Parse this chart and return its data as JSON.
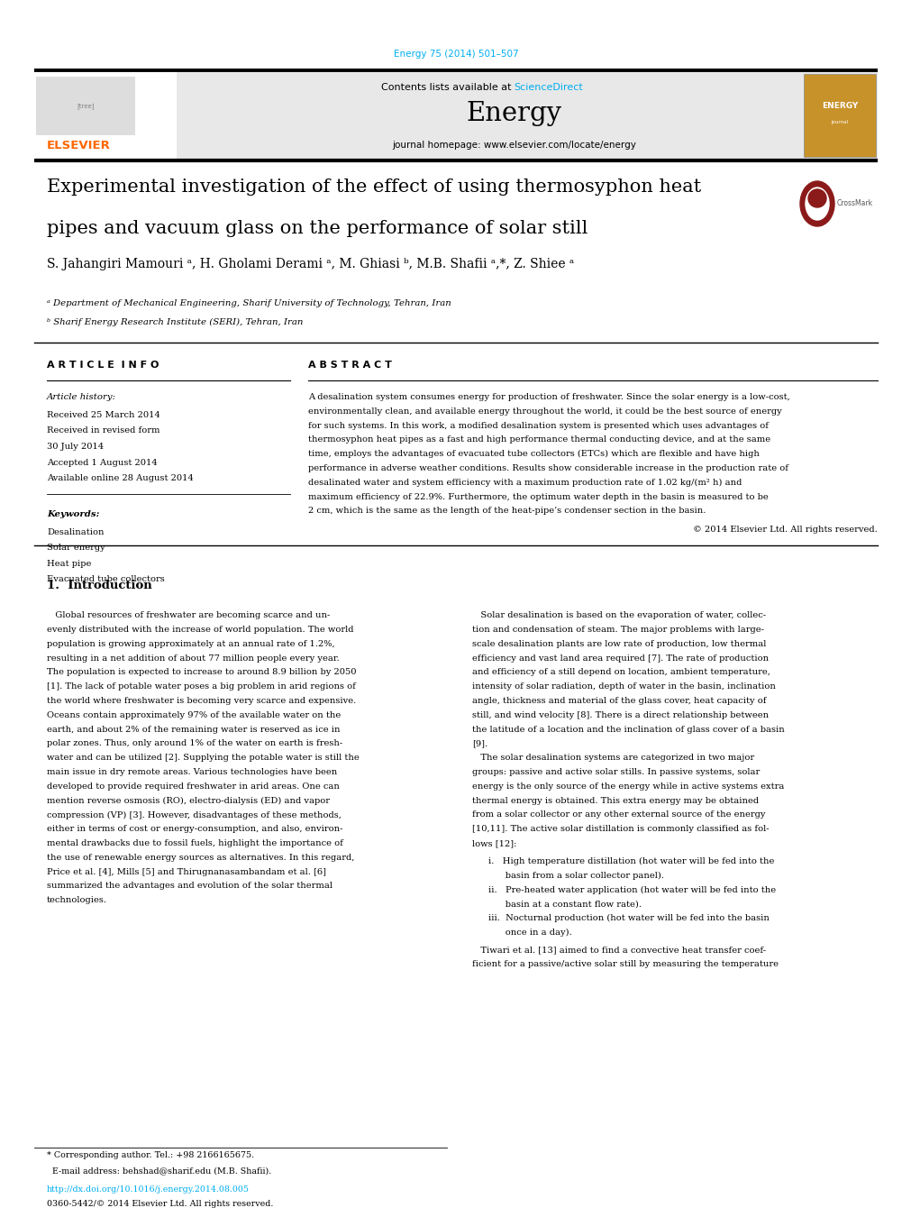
{
  "page_width": 9.92,
  "page_height": 13.23,
  "bg_color": "#ffffff",
  "journal_ref": "Energy 75 (2014) 501–507",
  "journal_ref_color": "#00aeef",
  "header_bg": "#e8e8e8",
  "contents_text": "Contents lists available at ",
  "sciencedirect_text": "ScienceDirect",
  "sciencedirect_color": "#00aeef",
  "journal_name": "Energy",
  "homepage_text": "journal homepage: www.elsevier.com/locate/energy",
  "elsevier_color": "#ff6600",
  "title_line1": "Experimental investigation of the effect of using thermosyphon heat",
  "title_line2": "pipes and vacuum glass on the performance of solar still",
  "authors": "S. Jahangiri Mamouri ᵃ, H. Gholami Derami ᵃ, M. Ghiasi ᵇ, M.B. Shafii ᵃ,*, Z. Shiee ᵃ",
  "affil_a": "ᵃ Department of Mechanical Engineering, Sharif University of Technology, Tehran, Iran",
  "affil_b": "ᵇ Sharif Energy Research Institute (SERI), Tehran, Iran",
  "section_article_info": "A R T I C L E  I N F O",
  "section_abstract": "A B S T R A C T",
  "article_history_label": "Article history:",
  "received": "Received 25 March 2014",
  "received_revised1": "Received in revised form",
  "received_revised2": "30 July 2014",
  "accepted": "Accepted 1 August 2014",
  "available": "Available online 28 August 2014",
  "keywords_label": "Keywords:",
  "keywords": [
    "Desalination",
    "Solar energy",
    "Heat pipe",
    "Evacuated tube collectors"
  ],
  "abstract_text": "A desalination system consumes energy for production of freshwater. Since the solar energy is a low-cost, environmentally clean, and available energy throughout the world, it could be the best source of energy for such systems. In this work, a modified desalination system is presented which uses advantages of thermosyphon heat pipes as a fast and high performance thermal conducting device, and at the same time, employs the advantages of evacuated tube collectors (ETCs) which are flexible and have high performance in adverse weather conditions. Results show considerable increase in the production rate of desalinated water and system efficiency with a maximum production rate of 1.02 kg/(m² h) and maximum efficiency of 22.9%. Furthermore, the optimum water depth in the basin is measured to be 2 cm, which is the same as the length of the heat-pipe’s condenser section in the basin.",
  "copyright_text": "© 2014 Elsevier Ltd. All rights reserved.",
  "intro_heading": "1.  Introduction",
  "intro_col1_lines": [
    "   Global resources of freshwater are becoming scarce and un-",
    "evenly distributed with the increase of world population. The world",
    "population is growing approximately at an annual rate of 1.2%,",
    "resulting in a net addition of about 77 million people every year.",
    "The population is expected to increase to around 8.9 billion by 2050",
    "[1]. The lack of potable water poses a big problem in arid regions of",
    "the world where freshwater is becoming very scarce and expensive.",
    "Oceans contain approximately 97% of the available water on the",
    "earth, and about 2% of the remaining water is reserved as ice in",
    "polar zones. Thus, only around 1% of the water on earth is fresh-",
    "water and can be utilized [2]. Supplying the potable water is still the",
    "main issue in dry remote areas. Various technologies have been",
    "developed to provide required freshwater in arid areas. One can",
    "mention reverse osmosis (RO), electro-dialysis (ED) and vapor",
    "compression (VP) [3]. However, disadvantages of these methods,",
    "either in terms of cost or energy-consumption, and also, environ-",
    "mental drawbacks due to fossil fuels, highlight the importance of",
    "the use of renewable energy sources as alternatives. In this regard,",
    "Price et al. [4], Mills [5] and Thirugnanasambandam et al. [6]",
    "summarized the advantages and evolution of the solar thermal",
    "technologies."
  ],
  "intro_col2_lines": [
    "   Solar desalination is based on the evaporation of water, collec-",
    "tion and condensation of steam. The major problems with large-",
    "scale desalination plants are low rate of production, low thermal",
    "efficiency and vast land area required [7]. The rate of production",
    "and efficiency of a still depend on location, ambient temperature,",
    "intensity of solar radiation, depth of water in the basin, inclination",
    "angle, thickness and material of the glass cover, heat capacity of",
    "still, and wind velocity [8]. There is a direct relationship between",
    "the latitude of a location and the inclination of glass cover of a basin",
    "[9].",
    "   The solar desalination systems are categorized in two major",
    "groups: passive and active solar stills. In passive systems, solar",
    "energy is the only source of the energy while in active systems extra",
    "thermal energy is obtained. This extra energy may be obtained",
    "from a solar collector or any other external source of the energy",
    "[10,11]. The active solar distillation is commonly classified as fol-",
    "lows [12]:"
  ],
  "list_items": [
    "i.   High temperature distillation (hot water will be fed into the",
    "      basin from a solar collector panel).",
    "ii.   Pre-heated water application (hot water will be fed into the",
    "      basin at a constant flow rate).",
    "iii.  Nocturnal production (hot water will be fed into the basin",
    "      once in a day)."
  ],
  "col2_end_lines": [
    "   Tiwari et al. [13] aimed to find a convective heat transfer coef-",
    "ficient for a passive/active solar still by measuring the temperature"
  ],
  "footer_star": "* Corresponding author. Tel.: +98 2166165675.",
  "footer_email": "  E-mail address: behshad@sharif.edu (M.B. Shafii).",
  "footer_doi": "http://dx.doi.org/10.1016/j.energy.2014.08.005",
  "footer_issn": "0360-5442/© 2014 Elsevier Ltd. All rights reserved.",
  "doi_color": "#00aeef"
}
